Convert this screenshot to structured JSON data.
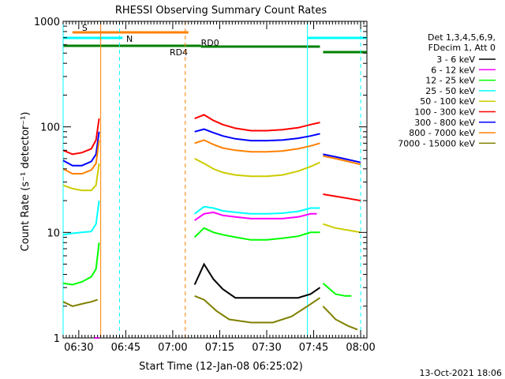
{
  "chart_data": {
    "type": "line",
    "title": "RHESSI Observing Summary Count Rates",
    "xlabel": "Start Time (12-Jan-08 06:25:02)",
    "ylabel": "Count Rate (s⁻¹ detector⁻¹)",
    "y_scale": "log",
    "ylim": [
      1,
      1000
    ],
    "y_ticks": [
      "1",
      "10",
      "100",
      "1000"
    ],
    "xlim": [
      "06:25",
      "08:02"
    ],
    "x_ticks": [
      "06:30",
      "06:45",
      "07:00",
      "07:15",
      "07:30",
      "07:45",
      "08:00"
    ],
    "footer": "13-Oct-2021 18:06",
    "legend_header": [
      "Det 1,3,4,5,6,9,",
      "FDecim 1, Att 0"
    ],
    "legend_position": "top-right",
    "series": [
      {
        "name": "3 - 6 keV",
        "color": "#000000",
        "segments": [
          {
            "x": [
              "07:07",
              "07:10",
              "07:13",
              "07:16",
              "07:20",
              "07:25",
              "07:30",
              "07:35",
              "07:40",
              "07:44",
              "07:47"
            ],
            "y": [
              3.2,
              5.0,
              3.6,
              2.9,
              2.4,
              2.4,
              2.4,
              2.4,
              2.4,
              2.6,
              3.0
            ]
          }
        ]
      },
      {
        "name": "6 - 12 keV",
        "color": "#ff00ff",
        "segments": [
          {
            "x": [
              "06:35",
              "06:36",
              "06:36.5"
            ],
            "y": [
              1.0,
              1.0,
              1.0
            ]
          },
          {
            "x": [
              "07:07",
              "07:10",
              "07:13",
              "07:16",
              "07:20",
              "07:25",
              "07:30",
              "07:35",
              "07:40",
              "07:44",
              "07:46"
            ],
            "y": [
              13,
              15,
              15.5,
              14.5,
              14,
              13.5,
              13.5,
              13.5,
              14,
              15,
              15
            ]
          }
        ]
      },
      {
        "name": "12 - 25 keV",
        "color": "#00ff00",
        "segments": [
          {
            "x": [
              "06:25",
              "06:28",
              "06:31",
              "06:34",
              "06:35.5",
              "06:36.5"
            ],
            "y": [
              3.3,
              3.2,
              3.4,
              3.8,
              4.5,
              8
            ]
          },
          {
            "x": [
              "07:07",
              "07:10",
              "07:13",
              "07:16",
              "07:20",
              "07:25",
              "07:30",
              "07:35",
              "07:40",
              "07:44",
              "07:47"
            ],
            "y": [
              9,
              11,
              10,
              9.5,
              9,
              8.5,
              8.5,
              8.8,
              9.2,
              10,
              10
            ]
          },
          {
            "x": [
              "07:48",
              "07:52",
              "07:55",
              "07:57"
            ],
            "y": [
              3.3,
              2.6,
              2.5,
              2.5
            ]
          }
        ]
      },
      {
        "name": "25 - 50 keV",
        "color": "#00ffff",
        "segments": [
          {
            "x": [
              "06:25",
              "06:28",
              "06:31",
              "06:34",
              "06:35.5",
              "06:36.5"
            ],
            "y": [
              9.5,
              9.8,
              10,
              10.2,
              12,
              20
            ]
          },
          {
            "x": [
              "07:07",
              "07:10",
              "07:13",
              "07:16",
              "07:20",
              "07:25",
              "07:30",
              "07:35",
              "07:40",
              "07:44",
              "07:47"
            ],
            "y": [
              15,
              17.5,
              17,
              16,
              15.5,
              15,
              15,
              15.2,
              15.8,
              17,
              17
            ]
          }
        ]
      },
      {
        "name": "50 - 100 keV",
        "color": "#cccc00",
        "segments": [
          {
            "x": [
              "06:25",
              "06:28",
              "06:31",
              "06:34",
              "06:35.5",
              "06:36.5"
            ],
            "y": [
              28,
              26,
              25,
              25,
              28,
              45
            ]
          },
          {
            "x": [
              "07:07",
              "07:10",
              "07:13",
              "07:16",
              "07:20",
              "07:25",
              "07:30",
              "07:35",
              "07:40",
              "07:44",
              "07:47"
            ],
            "y": [
              50,
              45,
              40,
              37,
              35,
              34,
              34,
              35,
              38,
              42,
              46
            ]
          },
          {
            "x": [
              "07:48",
              "07:52",
              "07:56",
              "08:00"
            ],
            "y": [
              12,
              11,
              10.5,
              10
            ]
          }
        ]
      },
      {
        "name": "100 - 300 keV",
        "color": "#ff0000",
        "segments": [
          {
            "x": [
              "06:25",
              "06:28",
              "06:31",
              "06:34",
              "06:35.5",
              "06:36.5"
            ],
            "y": [
              60,
              55,
              57,
              62,
              75,
              120
            ]
          },
          {
            "x": [
              "07:07",
              "07:10",
              "07:13",
              "07:16",
              "07:20",
              "07:25",
              "07:30",
              "07:35",
              "07:40",
              "07:44",
              "07:47"
            ],
            "y": [
              120,
              130,
              115,
              105,
              97,
              92,
              92,
              94,
              98,
              105,
              110
            ]
          },
          {
            "x": [
              "07:48",
              "07:52",
              "07:56",
              "08:00"
            ],
            "y": [
              23,
              22,
              21,
              20
            ]
          }
        ]
      },
      {
        "name": "300 - 800 keV",
        "color": "#0000ff",
        "segments": [
          {
            "x": [
              "06:25",
              "06:28",
              "06:31",
              "06:34",
              "06:35.5",
              "06:36.5"
            ],
            "y": [
              48,
              43,
              43,
              47,
              55,
              90
            ]
          },
          {
            "x": [
              "07:07",
              "07:10",
              "07:13",
              "07:16",
              "07:20",
              "07:25",
              "07:30",
              "07:35",
              "07:40",
              "07:44",
              "07:47"
            ],
            "y": [
              90,
              95,
              88,
              82,
              77,
              74,
              74,
              75,
              78,
              82,
              86
            ]
          },
          {
            "x": [
              "07:48",
              "07:52",
              "07:56",
              "08:00"
            ],
            "y": [
              55,
              52,
              49,
              46
            ]
          }
        ]
      },
      {
        "name": "800 - 7000 keV",
        "color": "#ff8000",
        "segments": [
          {
            "x": [
              "06:25",
              "06:28",
              "06:31",
              "06:34",
              "06:35.5",
              "06:36.5"
            ],
            "y": [
              40,
              36,
              36,
              39,
              45,
              75
            ]
          },
          {
            "x": [
              "07:07",
              "07:10",
              "07:13",
              "07:16",
              "07:20",
              "07:25",
              "07:30",
              "07:35",
              "07:40",
              "07:44",
              "07:47"
            ],
            "y": [
              70,
              75,
              68,
              63,
              60,
              58,
              58,
              59,
              62,
              66,
              70
            ]
          },
          {
            "x": [
              "07:48",
              "07:52",
              "07:56",
              "08:00"
            ],
            "y": [
              53,
              50,
              47,
              44
            ]
          }
        ]
      },
      {
        "name": "7000 - 15000 keV",
        "color": "#808000",
        "segments": [
          {
            "x": [
              "06:25",
              "06:28",
              "06:31",
              "06:34",
              "06:36"
            ],
            "y": [
              2.2,
              2.0,
              2.1,
              2.2,
              2.3
            ]
          },
          {
            "x": [
              "07:07",
              "07:10",
              "07:14",
              "07:18",
              "07:25",
              "07:32",
              "07:38",
              "07:43",
              "07:47"
            ],
            "y": [
              2.5,
              2.3,
              1.8,
              1.5,
              1.4,
              1.4,
              1.6,
              2.0,
              2.4
            ]
          },
          {
            "x": [
              "07:48",
              "07:52",
              "07:56",
              "07:59"
            ],
            "y": [
              2.0,
              1.5,
              1.3,
              1.2
            ]
          }
        ]
      }
    ],
    "markers": [
      {
        "label": "S",
        "color": "#ff8000",
        "x_start": "06:28",
        "x_end": "07:05"
      },
      {
        "label": "N",
        "color": "#00ffff",
        "x_start": "06:25",
        "x_end": "06:44"
      },
      {
        "label": "N",
        "color": "#00ffff",
        "x_start": "07:43",
        "x_end": "08:02"
      },
      {
        "label": "RD4",
        "color": "#008000",
        "x_start": "06:25",
        "x_end": "07:09"
      },
      {
        "label": "RD0",
        "color": "#008000",
        "x_start": "07:09",
        "x_end": "07:47"
      },
      {
        "label": "",
        "color": "#008000",
        "x_start": "07:48",
        "x_end": "08:02"
      }
    ],
    "vertical_lines": [
      {
        "x": "06:25",
        "color": "#00ffff",
        "style": "solid"
      },
      {
        "x": "06:37",
        "color": "#ff8000",
        "style": "solid"
      },
      {
        "x": "06:43",
        "color": "#00ffff",
        "style": "dashed"
      },
      {
        "x": "07:04",
        "color": "#ff8000",
        "style": "dashed"
      },
      {
        "x": "07:43",
        "color": "#00ffff",
        "style": "solid"
      },
      {
        "x": "08:00",
        "color": "#00ffff",
        "style": "dashed"
      }
    ]
  }
}
